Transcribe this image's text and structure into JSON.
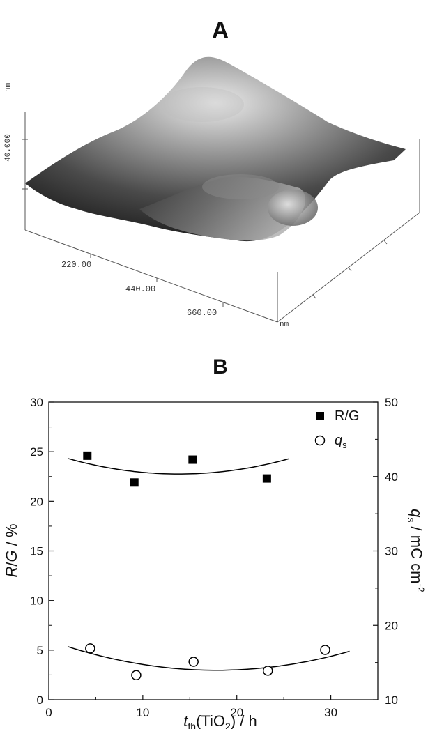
{
  "panel_a": {
    "label": "A",
    "z_axis": {
      "unit": "nm",
      "tick_label": "40.000"
    },
    "x_axis": {
      "tick_labels": [
        "220.00",
        "440.00",
        "660.00"
      ],
      "unit": "nm"
    }
  },
  "chart_data": {
    "type": "scatter",
    "title": "B",
    "xlabel": "t_fh(TiO2) / h",
    "ylabel": "R/G / %",
    "y2label": "q_s / mC cm^-2",
    "xlim": [
      0,
      35
    ],
    "ylim": [
      0,
      30
    ],
    "y2lim": [
      10,
      50
    ],
    "x_ticks": [
      0,
      10,
      20,
      30
    ],
    "y_ticks": [
      0,
      5,
      10,
      15,
      20,
      25,
      30
    ],
    "y2_ticks": [
      10,
      20,
      30,
      40,
      50
    ],
    "legend_position": "top-right",
    "series": [
      {
        "name": "R/G",
        "axis": "left",
        "marker": "filled-square",
        "x": [
          4.1,
          9.1,
          15.3,
          23.2
        ],
        "y": [
          24.6,
          21.9,
          24.2,
          22.3
        ],
        "fit": {
          "x_range": [
            2,
            25.5
          ],
          "coeffs": [
            24.9,
            -0.31,
            0.0112
          ]
        }
      },
      {
        "name": "q_s",
        "axis": "right",
        "marker": "open-circle",
        "x": [
          4.4,
          9.3,
          15.4,
          23.3,
          29.4
        ],
        "y": [
          16.9,
          13.3,
          15.1,
          13.9,
          16.7
        ],
        "fit": {
          "x_range": [
            2,
            32
          ],
          "coeffs": [
            18.0,
            -0.453,
            0.0127
          ]
        }
      }
    ]
  }
}
